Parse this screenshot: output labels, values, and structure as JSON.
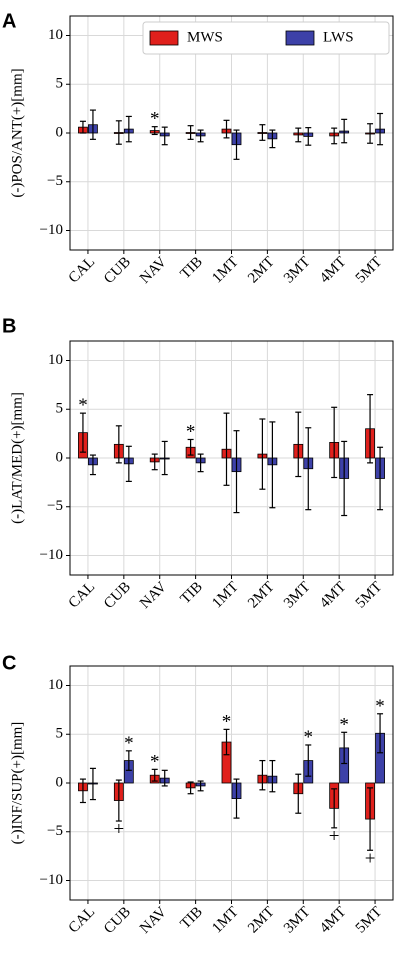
{
  "figure": {
    "legend": {
      "placement": "top-right",
      "labels": [
        "MWS",
        "LWS"
      ]
    }
  },
  "colors": {
    "MWS": "#e0201c",
    "LWS": "#3d41a8",
    "errorbar": "#000000",
    "grid": "#d9d9d9"
  },
  "chart_data": [
    {
      "type": "bar",
      "panel_label": "A",
      "ylabel": "(-)POS/ANT(+)[mm]",
      "ylim": [
        -12,
        12
      ],
      "yticks": [
        -10,
        -5,
        0,
        5,
        10
      ],
      "grid": true,
      "legend": true,
      "categories": [
        "CAL",
        "CUB",
        "NAV",
        "TIB",
        "1MT",
        "2MT",
        "3MT",
        "4MT",
        "5MT"
      ],
      "series": [
        {
          "name": "MWS",
          "values": [
            0.6,
            0.05,
            0.25,
            0.05,
            0.4,
            0.05,
            -0.2,
            -0.3,
            -0.05
          ],
          "errors": [
            0.6,
            1.2,
            0.4,
            0.7,
            0.9,
            0.8,
            0.7,
            0.8,
            1.0
          ],
          "markers_above": [
            "",
            "",
            "*",
            "",
            "",
            "",
            "",
            "",
            ""
          ],
          "markers_below": [
            "",
            "",
            "",
            "",
            "",
            "",
            "",
            "",
            ""
          ]
        },
        {
          "name": "LWS",
          "values": [
            0.85,
            0.4,
            -0.3,
            -0.3,
            -1.2,
            -0.6,
            -0.35,
            0.2,
            0.4
          ],
          "errors": [
            1.5,
            1.3,
            0.9,
            0.6,
            1.5,
            0.9,
            0.9,
            1.2,
            1.6
          ],
          "markers_above": [
            "",
            "",
            "",
            "",
            "",
            "",
            "",
            "",
            ""
          ],
          "markers_below": [
            "",
            "",
            "",
            "",
            "",
            "",
            "",
            "",
            ""
          ]
        }
      ]
    },
    {
      "type": "bar",
      "panel_label": "B",
      "ylabel": "(-)LAT/MED(+)[mm]",
      "ylim": [
        -12,
        12
      ],
      "yticks": [
        -10,
        -5,
        0,
        5,
        10
      ],
      "grid": true,
      "legend": false,
      "categories": [
        "CAL",
        "CUB",
        "NAV",
        "TIB",
        "1MT",
        "2MT",
        "3MT",
        "4MT",
        "5MT"
      ],
      "series": [
        {
          "name": "MWS",
          "values": [
            2.6,
            1.4,
            -0.4,
            1.1,
            0.9,
            0.4,
            1.4,
            1.6,
            3.0
          ],
          "errors": [
            2.0,
            1.9,
            0.8,
            0.8,
            3.7,
            3.6,
            3.3,
            3.6,
            3.5
          ],
          "markers_above": [
            "*",
            "",
            "",
            "*",
            "",
            "",
            "",
            "",
            ""
          ],
          "markers_below": [
            "",
            "",
            "",
            "",
            "",
            "",
            "",
            "",
            ""
          ]
        },
        {
          "name": "LWS",
          "values": [
            -0.7,
            -0.6,
            0.0,
            -0.5,
            -1.4,
            -0.7,
            -1.1,
            -2.1,
            -2.1
          ],
          "errors": [
            1.0,
            1.8,
            1.7,
            0.9,
            4.2,
            4.4,
            4.2,
            3.8,
            3.2
          ],
          "markers_above": [
            "",
            "",
            "",
            "",
            "",
            "",
            "",
            "",
            ""
          ],
          "markers_below": [
            "",
            "",
            "",
            "",
            "",
            "",
            "",
            "",
            ""
          ]
        }
      ]
    },
    {
      "type": "bar",
      "panel_label": "C",
      "ylabel": "(-)INF/SUP(+)[mm]",
      "ylim": [
        -12,
        12
      ],
      "yticks": [
        -10,
        -5,
        0,
        5,
        10
      ],
      "grid": true,
      "legend": false,
      "categories": [
        "CAL",
        "CUB",
        "NAV",
        "TIB",
        "1MT",
        "2MT",
        "3MT",
        "4MT",
        "5MT"
      ],
      "series": [
        {
          "name": "MWS",
          "values": [
            -0.8,
            -1.8,
            0.8,
            -0.5,
            4.2,
            0.8,
            -1.1,
            -2.6,
            -3.7
          ],
          "errors": [
            1.2,
            2.1,
            0.6,
            0.6,
            1.3,
            1.5,
            2.0,
            2.0,
            3.2
          ],
          "markers_above": [
            "",
            "",
            "*",
            "",
            "*",
            "",
            "",
            "",
            ""
          ],
          "markers_below": [
            "",
            "+",
            "",
            "",
            "",
            "",
            "",
            "+",
            "+"
          ]
        },
        {
          "name": "LWS",
          "values": [
            -0.1,
            2.3,
            0.5,
            -0.3,
            -1.6,
            0.7,
            2.3,
            3.6,
            5.1
          ],
          "errors": [
            1.6,
            1.0,
            0.8,
            0.5,
            2.0,
            1.6,
            1.6,
            1.6,
            2.0
          ],
          "markers_above": [
            "",
            "*",
            "",
            "",
            "",
            "",
            "*",
            "*",
            "*"
          ],
          "markers_below": [
            "",
            "",
            "",
            "",
            "",
            "",
            "",
            "",
            ""
          ]
        }
      ]
    }
  ]
}
